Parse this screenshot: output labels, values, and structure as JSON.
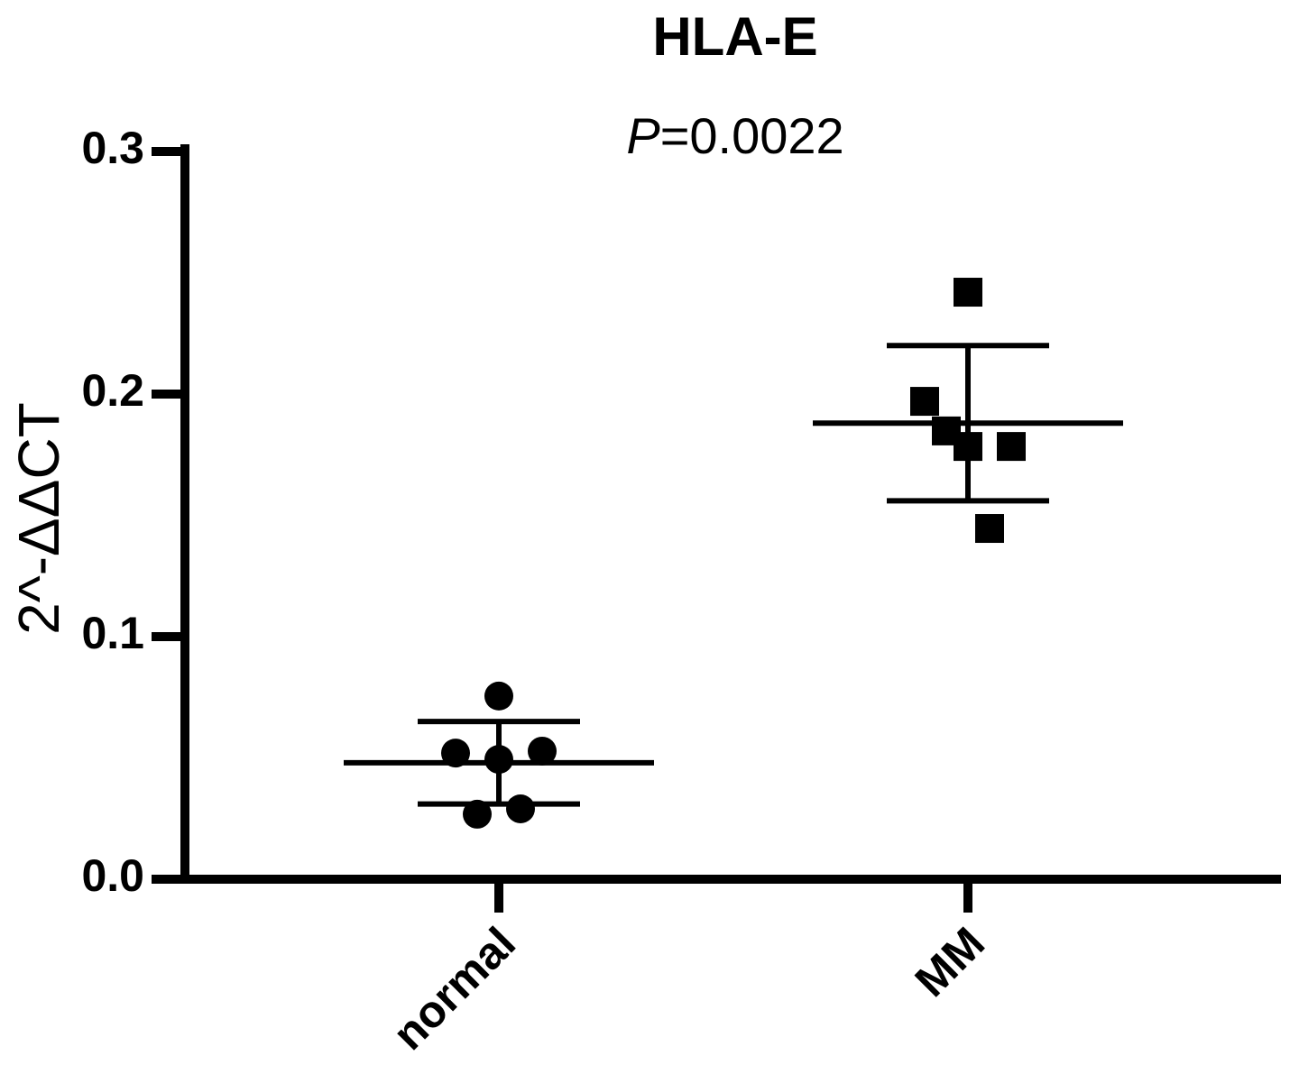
{
  "chart_data": {
    "type": "dot",
    "title": "HLA-E",
    "annotation": {
      "italic": "P",
      "text": "=0.0022"
    },
    "y_label": "2^-ΔΔCT",
    "categories": [
      "normal",
      "MM"
    ],
    "groups": [
      {
        "marker": "circle",
        "values": [
          0.0755,
          0.052,
          0.0494,
          0.0528,
          0.0268,
          0.029
        ],
        "mean": 0.048,
        "sd": 0.017
      },
      {
        "marker": "square",
        "values": [
          0.242,
          0.197,
          0.1784,
          0.1784,
          0.1848,
          0.1446
        ],
        "mean": 0.188,
        "sd": 0.032
      }
    ],
    "color": "#000000",
    "ylim": [
      0,
      0.3
    ],
    "yticks": [
      {
        "value": 0,
        "label": "0.0"
      },
      0.1,
      0.2,
      0.3
    ]
  }
}
